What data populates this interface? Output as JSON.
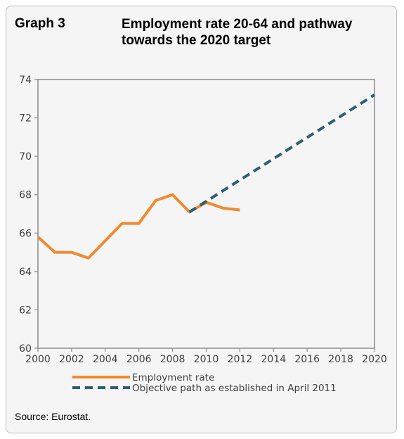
{
  "header": {
    "graph_label": "Graph 3",
    "title": "Employment rate 20-64 and pathway towards the 2020 target"
  },
  "source": "Source: Eurostat.",
  "colors": {
    "employment": "#f28a2e",
    "objective": "#2d5f73",
    "axis": "#8c8c8c",
    "text": "#404040"
  },
  "chart_data": {
    "type": "line",
    "title": "Employment rate 20-64 and pathway towards the 2020 target",
    "xlabel": "",
    "ylabel": "",
    "xlim": [
      2000,
      2020
    ],
    "ylim": [
      60,
      74
    ],
    "x_ticks": [
      "2000",
      "2002",
      "2004",
      "2006",
      "2008",
      "2010",
      "2012",
      "2014",
      "2016",
      "2018",
      "2020"
    ],
    "y_ticks": [
      "60",
      "62",
      "64",
      "66",
      "68",
      "70",
      "72",
      "74"
    ],
    "grid": false,
    "legend_position": "bottom",
    "series": [
      {
        "name": "Employment rate",
        "style": "solid",
        "x": [
          2000,
          2001,
          2002,
          2003,
          2004,
          2005,
          2006,
          2007,
          2008,
          2009,
          2010,
          2011,
          2012
        ],
        "values": [
          65.8,
          65.0,
          65.0,
          64.7,
          65.6,
          66.5,
          66.5,
          67.7,
          68.0,
          67.1,
          67.6,
          67.3,
          67.2
        ]
      },
      {
        "name": "Objective path as established in April 2011",
        "style": "dashed",
        "x": [
          2009,
          2020
        ],
        "values": [
          67.1,
          73.2
        ]
      }
    ]
  }
}
